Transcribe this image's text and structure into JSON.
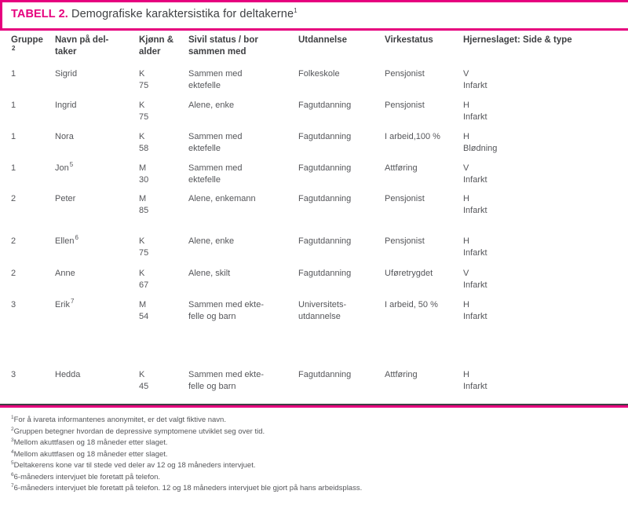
{
  "page_title": {
    "label": "TABELL 2.",
    "text": " Demografiske karaktersistika for deltakerne",
    "sup": "1"
  },
  "colors": {
    "accent": "#e6007e",
    "heading_text": "#3f4043",
    "body_text": "#55565a"
  },
  "table": {
    "header": {
      "gruppe": {
        "label": "Gruppe",
        "sup": "2"
      },
      "navn": {
        "line1": "Navn på del-",
        "line2": "taker"
      },
      "kjonn": {
        "line1": "Kjønn &",
        "line2": "alder"
      },
      "sivil": {
        "line1": "Sivil status / bor",
        "line2": "sammen med"
      },
      "utdannelse": "Utdannelse",
      "virkestatus": "Virkestatus",
      "hjerneslaget": "Hjerneslaget: Side & type"
    },
    "rows": [
      {
        "gruppe": "1",
        "navn": "Sigrid",
        "sup": "",
        "kjonn": "K",
        "alder": "75",
        "sivil1": "Sammen med",
        "sivil2": "ektefelle",
        "utd1": "Folkeskole",
        "utd2": "",
        "virke": "Pensjonist",
        "side": "V",
        "slagtype": "Infarkt"
      },
      {
        "gruppe": "1",
        "navn": "Ingrid",
        "sup": "",
        "kjonn": "K",
        "alder": "75",
        "sivil1": "Alene, enke",
        "sivil2": "",
        "utd1": "Fagutdanning",
        "utd2": "",
        "virke": "Pensjonist",
        "side": "H",
        "slagtype": "Infarkt"
      },
      {
        "gruppe": "1",
        "navn": "Nora",
        "sup": "",
        "kjonn": "K",
        "alder": "58",
        "sivil1": "Sammen med",
        "sivil2": "ektefelle",
        "utd1": "Fagutdanning",
        "utd2": "",
        "virke": "I arbeid,100 %",
        "side": "H",
        "slagtype": "Blødning"
      },
      {
        "gruppe": "1",
        "navn": "Jon",
        "sup": "5",
        "kjonn": "M",
        "alder": "30",
        "sivil1": "Sammen med",
        "sivil2": "ektefelle",
        "utd1": "Fagutdanning",
        "utd2": "",
        "virke": "Attføring",
        "side": "V",
        "slagtype": "Infarkt"
      },
      {
        "gruppe": "2",
        "navn": "Peter",
        "sup": "",
        "kjonn": "M",
        "alder": "85",
        "sivil1": "Alene, enkemann",
        "sivil2": "",
        "utd1": "Fagutdanning",
        "utd2": "",
        "virke": "Pensjonist",
        "side": "H",
        "slagtype": "Infarkt"
      },
      {
        "gruppe": "2",
        "navn": "Ellen",
        "sup": "6",
        "kjonn": "K",
        "alder": "75",
        "sivil1": "Alene, enke",
        "sivil2": "",
        "utd1": "Fagutdanning",
        "utd2": "",
        "virke": "Pensjonist",
        "side": "H",
        "slagtype": "Infarkt"
      },
      {
        "gruppe": "2",
        "navn": "Anne",
        "sup": "",
        "kjonn": "K",
        "alder": "67",
        "sivil1": "Alene, skilt",
        "sivil2": "",
        "utd1": "Fagutdanning",
        "utd2": "",
        "virke": "Uføretrygdet",
        "side": "V",
        "slagtype": "Infarkt"
      },
      {
        "gruppe": "3",
        "navn": "Erik",
        "sup": "7",
        "kjonn": "M",
        "alder": "54",
        "sivil1": "Sammen med ekte-",
        "sivil2": "felle og barn",
        "utd1": "Universitets-",
        "utd2": "utdannelse",
        "virke": "I arbeid, 50 %",
        "side": "H",
        "slagtype": "Infarkt"
      },
      {
        "gruppe": "3",
        "navn": "Hedda",
        "sup": "",
        "kjonn": "K",
        "alder": "45",
        "sivil1": "Sammen med ekte-",
        "sivil2": "felle og barn",
        "utd1": "Fagutdanning",
        "utd2": "",
        "virke": "Attføring",
        "side": "H",
        "slagtype": "Infarkt"
      }
    ]
  },
  "footnotes": [
    {
      "sup": "1",
      "text": "For å ivareta informantenes anonymitet, er det valgt fiktive navn."
    },
    {
      "sup": "2",
      "text": "Gruppen betegner hvordan de depressive symptomene utviklet seg over tid."
    },
    {
      "sup": "3",
      "text": "Mellom akuttfasen og 18 måneder etter slaget."
    },
    {
      "sup": "4",
      "text": "Mellom akuttfasen og 18 måneder etter slaget."
    },
    {
      "sup": "5",
      "text": "Deltakerens kone var til stede ved deler av 12 og 18 måneders intervjuet."
    },
    {
      "sup": "6",
      "text": "6-måneders intervjuet ble foretatt på telefon."
    },
    {
      "sup": "7",
      "text": "6-måneders intervjuet ble foretatt på telefon. 12 og 18 måneders intervjuet ble gjort på hans arbeidsplass."
    }
  ]
}
